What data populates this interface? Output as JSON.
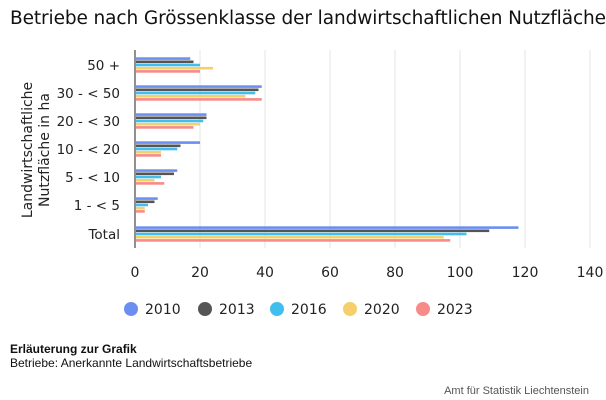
{
  "chart_data": {
    "type": "bar",
    "orientation": "horizontal",
    "title": "Betriebe nach Grössenklasse der landwirtschaftlichen Nutzfläche",
    "ylabel_lines": [
      "Landwirtschaftliche",
      "Nutzfläche in ha"
    ],
    "xlabel": "",
    "categories": [
      "50 +",
      "30 - < 50",
      "20 - < 30",
      "10 - < 20",
      "5 - < 10",
      "1 - < 5",
      "Total"
    ],
    "xlim": [
      0,
      140
    ],
    "xticks": [
      "0",
      "20",
      "40",
      "60",
      "80",
      "100",
      "120",
      "140"
    ],
    "grid": "vertical",
    "legend_position": "bottom",
    "series": [
      {
        "name": "2010",
        "color": "#6b8ff0",
        "values": [
          17,
          39,
          22,
          20,
          13,
          7,
          118
        ]
      },
      {
        "name": "2013",
        "color": "#555555",
        "values": [
          18,
          38,
          22,
          14,
          12,
          6,
          109
        ]
      },
      {
        "name": "2016",
        "color": "#41bef0",
        "values": [
          20,
          37,
          21,
          13,
          8,
          4,
          102
        ]
      },
      {
        "name": "2020",
        "color": "#f5cf6a",
        "values": [
          24,
          34,
          20,
          8,
          6,
          3,
          95
        ]
      },
      {
        "name": "2023",
        "color": "#f78b88",
        "values": [
          20,
          39,
          18,
          8,
          9,
          3,
          97
        ]
      }
    ]
  },
  "note": {
    "heading": "Erläuterung zur Grafik",
    "text": "Betriebe: Anerkannte Landwirtschaftsbetriebe"
  },
  "source": "Amt für Statistik Liechtenstein"
}
